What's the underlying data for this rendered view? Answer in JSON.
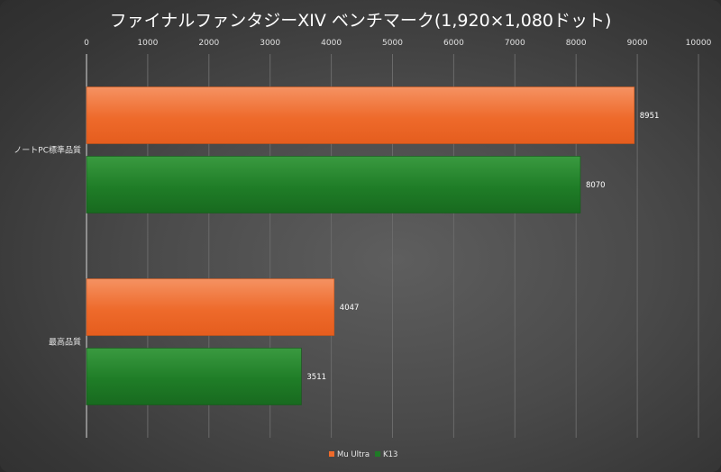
{
  "chart_data": {
    "type": "bar",
    "orientation": "horizontal",
    "title": "ファイナルファンタジーXIV ベンチマーク(1,920×1,080ドット)",
    "categories": [
      "ノートPC標準品質",
      "最高品質"
    ],
    "series": [
      {
        "name": "Mu Ultra",
        "values": [
          8951,
          4047
        ],
        "color": "#ef6a2a",
        "color_light": "#f38a55"
      },
      {
        "name": "K13",
        "values": [
          8070,
          3511
        ],
        "color": "#1f7a26",
        "color_light": "#2f9436"
      }
    ],
    "xlim": [
      0,
      10000
    ],
    "xticks": [
      "0",
      "1000",
      "2000",
      "3000",
      "4000",
      "5000",
      "6000",
      "7000",
      "8000",
      "9000",
      "10000"
    ],
    "xaxis_position": "top",
    "grid": true,
    "legend_position": "bottom"
  }
}
